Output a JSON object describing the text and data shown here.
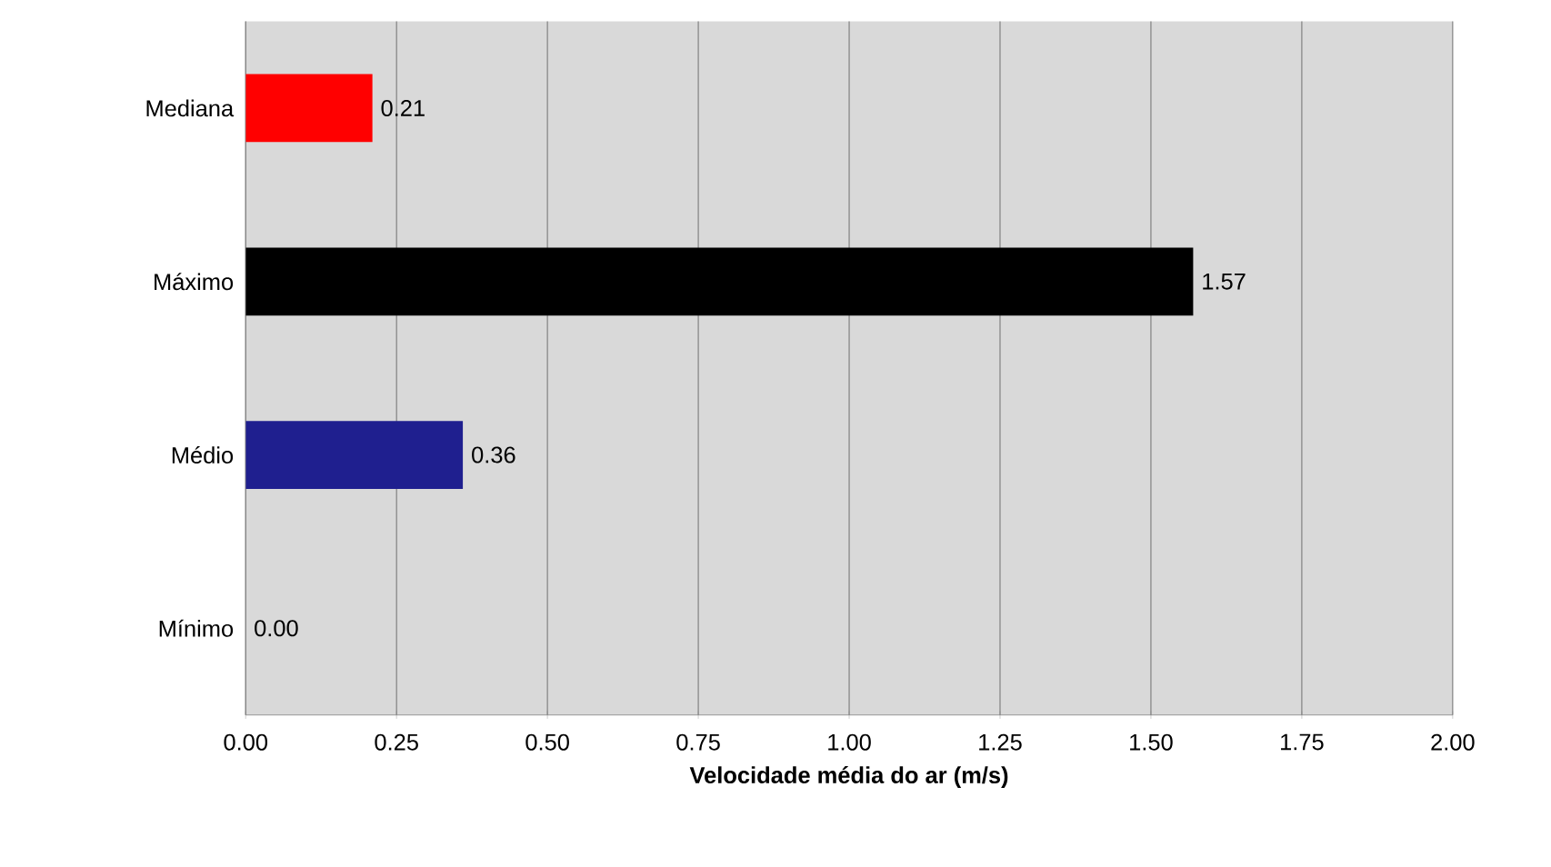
{
  "chart_data": {
    "type": "bar",
    "orientation": "horizontal",
    "categories": [
      "Mediana",
      "Máximo",
      "Médio",
      "Mínimo"
    ],
    "values": [
      0.21,
      1.57,
      0.36,
      0.0
    ],
    "colors": [
      "#ff0000",
      "#000000",
      "#1f1f8f",
      "#000000"
    ],
    "value_labels": [
      "0.21",
      "1.57",
      "0.36",
      "0.00"
    ],
    "xlabel": "Velocidade média do ar (m/s)",
    "xlim": [
      0,
      2
    ],
    "xticks": [
      {
        "value": 0,
        "label": "0.00"
      },
      {
        "value": 0.25,
        "label": "0.25"
      },
      {
        "value": 0.5,
        "label": "0.50"
      },
      {
        "value": 0.75,
        "label": "0.75"
      },
      {
        "value": 1,
        "label": "1.00"
      },
      {
        "value": 1.25,
        "label": "1.25"
      },
      {
        "value": 1.5,
        "label": "1.50"
      },
      {
        "value": 1.75,
        "label": "1.75"
      },
      {
        "value": 2,
        "label": "2.00"
      }
    ],
    "grid": "x"
  }
}
